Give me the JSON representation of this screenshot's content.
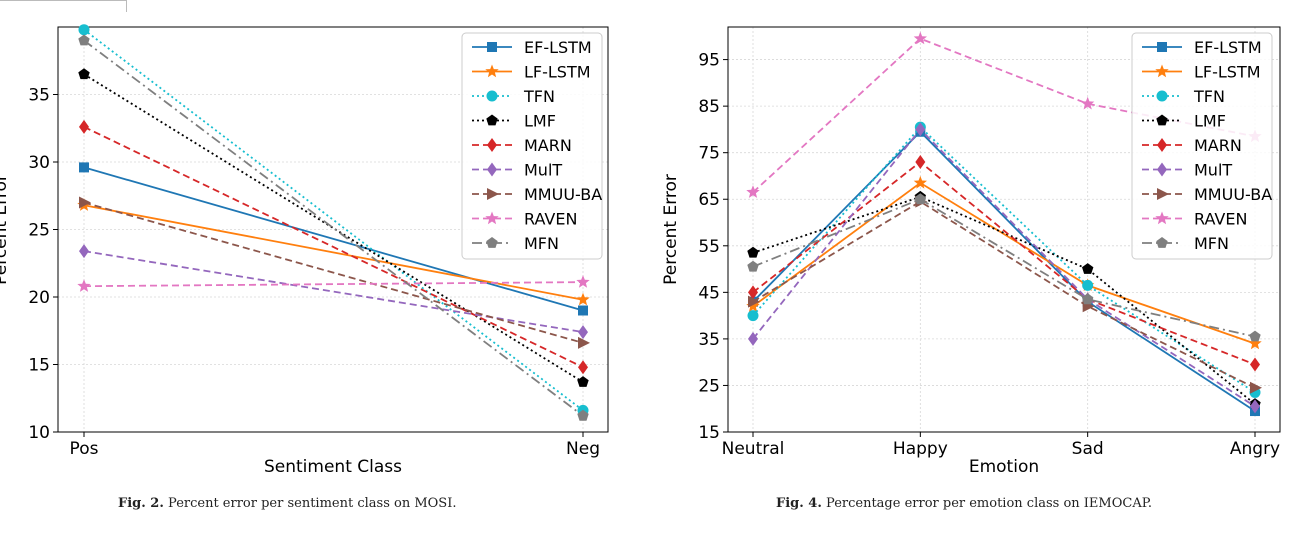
{
  "chart_data": [
    {
      "type": "line",
      "xlabel": "Sentiment Class",
      "ylabel": "Percent Error",
      "categories": [
        "Pos",
        "Neg"
      ],
      "ylim": [
        10,
        40
      ],
      "yticks": [
        10,
        15,
        20,
        25,
        30,
        35
      ],
      "grid": true,
      "legend_position": "top-right",
      "series": [
        {
          "name": "EF-LSTM",
          "values": [
            29.6,
            19.0
          ],
          "color": "#1f77b4",
          "dash": "solid",
          "marker": "square"
        },
        {
          "name": "LF-LSTM",
          "values": [
            26.8,
            19.8
          ],
          "color": "#ff7f0e",
          "dash": "solid",
          "marker": "star"
        },
        {
          "name": "TFN",
          "values": [
            39.8,
            11.6
          ],
          "color": "#17becf",
          "dash": "dotted",
          "marker": "circle"
        },
        {
          "name": "LMF",
          "values": [
            36.5,
            13.7
          ],
          "color": "#000000",
          "dash": "dotted",
          "marker": "pentagon"
        },
        {
          "name": "MARN",
          "values": [
            32.6,
            14.8
          ],
          "color": "#d62728",
          "dash": "dashed",
          "marker": "diamond"
        },
        {
          "name": "MulT",
          "values": [
            23.4,
            17.4
          ],
          "color": "#9467bd",
          "dash": "dashed",
          "marker": "diamond"
        },
        {
          "name": "MMUU-BA",
          "values": [
            27.0,
            16.6
          ],
          "color": "#8c564b",
          "dash": "dashed",
          "marker": "triangle-right"
        },
        {
          "name": "RAVEN",
          "values": [
            20.8,
            21.1
          ],
          "color": "#e377c2",
          "dash": "dashed",
          "marker": "star"
        },
        {
          "name": "MFN",
          "values": [
            39.0,
            11.2
          ],
          "color": "#7f7f7f",
          "dash": "dashdot",
          "marker": "pentagon"
        }
      ]
    },
    {
      "type": "line",
      "xlabel": "Emotion",
      "ylabel": "Percent Error",
      "categories": [
        "Neutral",
        "Happy",
        "Sad",
        "Angry"
      ],
      "ylim": [
        15,
        102
      ],
      "yticks": [
        15,
        25,
        35,
        45,
        55,
        65,
        75,
        85,
        95
      ],
      "grid": true,
      "legend_position": "top-right",
      "series": [
        {
          "name": "EF-LSTM",
          "values": [
            43.0,
            79.5,
            43.0,
            19.5
          ],
          "color": "#1f77b4",
          "dash": "solid",
          "marker": "square"
        },
        {
          "name": "LF-LSTM",
          "values": [
            42.0,
            68.5,
            46.5,
            34.0
          ],
          "color": "#ff7f0e",
          "dash": "solid",
          "marker": "star"
        },
        {
          "name": "TFN",
          "values": [
            40.0,
            80.5,
            46.5,
            23.5
          ],
          "color": "#17becf",
          "dash": "dotted",
          "marker": "circle"
        },
        {
          "name": "LMF",
          "values": [
            53.5,
            65.5,
            50.0,
            21.0
          ],
          "color": "#000000",
          "dash": "dotted",
          "marker": "pentagon"
        },
        {
          "name": "MARN",
          "values": [
            45.0,
            73.0,
            43.5,
            29.5
          ],
          "color": "#d62728",
          "dash": "dashed",
          "marker": "diamond"
        },
        {
          "name": "MulT",
          "values": [
            35.0,
            80.0,
            43.5,
            20.5
          ],
          "color": "#9467bd",
          "dash": "dashed",
          "marker": "diamond"
        },
        {
          "name": "MMUU-BA",
          "values": [
            43.0,
            64.5,
            42.0,
            24.5
          ],
          "color": "#8c564b",
          "dash": "dashed",
          "marker": "triangle-right"
        },
        {
          "name": "RAVEN",
          "values": [
            66.5,
            99.5,
            85.5,
            78.5
          ],
          "color": "#e377c2",
          "dash": "dashed",
          "marker": "star"
        },
        {
          "name": "MFN",
          "values": [
            50.5,
            65.0,
            43.5,
            35.5
          ],
          "color": "#7f7f7f",
          "dash": "dashdot",
          "marker": "pentagon"
        }
      ]
    }
  ],
  "captions": [
    {
      "label": "Fig. 2.",
      "text": "Percent error per sentiment class on MOSI."
    },
    {
      "label": "Fig. 4.",
      "text": "Percentage error per emotion class on IEMOCAP."
    }
  ]
}
